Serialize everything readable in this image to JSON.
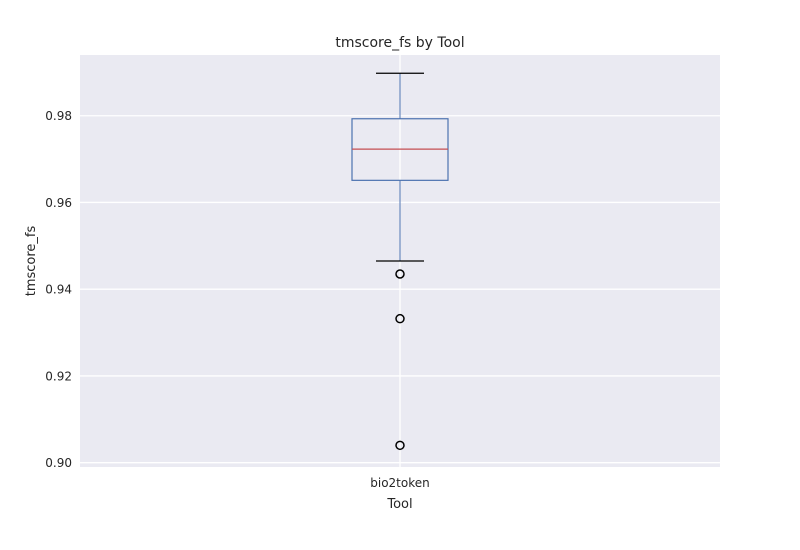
{
  "chart_data": {
    "type": "box",
    "title": "tmscore_fs by Tool",
    "xlabel": "Tool",
    "ylabel": "tmscore_fs",
    "categories": [
      "bio2token"
    ],
    "boxes": [
      {
        "name": "bio2token",
        "whisker_low": 0.9465,
        "q1": 0.9651,
        "median": 0.9723,
        "q3": 0.9793,
        "whisker_high": 0.9898,
        "outliers": [
          0.9435,
          0.9332,
          0.904
        ]
      }
    ],
    "ylim": [
      0.899,
      0.994
    ],
    "yticks": [
      "0.90",
      "0.92",
      "0.94",
      "0.96",
      "0.98"
    ],
    "grid": true,
    "colors": {
      "background": "#EAEAF2",
      "grid": "#FFFFFF",
      "box": "#4C72B0",
      "median": "#C44E52",
      "whisker_cap": "#000000",
      "outlier": "#000000"
    }
  }
}
